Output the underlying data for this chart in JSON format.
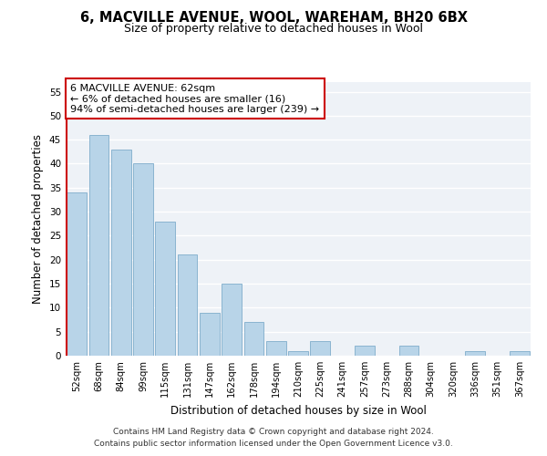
{
  "title1": "6, MACVILLE AVENUE, WOOL, WAREHAM, BH20 6BX",
  "title2": "Size of property relative to detached houses in Wool",
  "xlabel": "Distribution of detached houses by size in Wool",
  "ylabel": "Number of detached properties",
  "bar_labels": [
    "52sqm",
    "68sqm",
    "84sqm",
    "99sqm",
    "115sqm",
    "131sqm",
    "147sqm",
    "162sqm",
    "178sqm",
    "194sqm",
    "210sqm",
    "225sqm",
    "241sqm",
    "257sqm",
    "273sqm",
    "288sqm",
    "304sqm",
    "320sqm",
    "336sqm",
    "351sqm",
    "367sqm"
  ],
  "bar_values": [
    34,
    46,
    43,
    40,
    28,
    21,
    9,
    15,
    7,
    3,
    1,
    3,
    0,
    2,
    0,
    2,
    0,
    0,
    1,
    0,
    1
  ],
  "bar_color": "#b8d4e8",
  "bar_edge_color": "#8ab4d0",
  "highlight_color": "#cc0000",
  "annotation_title": "6 MACVILLE AVENUE: 62sqm",
  "annotation_line1": "← 6% of detached houses are smaller (16)",
  "annotation_line2": "94% of semi-detached houses are larger (239) →",
  "ylim": [
    0,
    57
  ],
  "yticks": [
    0,
    5,
    10,
    15,
    20,
    25,
    30,
    35,
    40,
    45,
    50,
    55
  ],
  "footnote1": "Contains HM Land Registry data © Crown copyright and database right 2024.",
  "footnote2": "Contains public sector information licensed under the Open Government Licence v3.0.",
  "bg_color": "#eef2f7"
}
